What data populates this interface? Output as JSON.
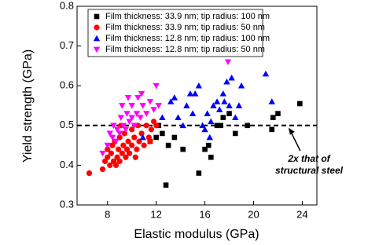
{
  "chart_data": {
    "type": "scatter",
    "x_label": "Elastic modulus (GPa)",
    "y_label": "Yield strength (GPa)",
    "xlim": [
      5.5,
      25.2
    ],
    "ylim": [
      0.3,
      0.8
    ],
    "xticks": [
      8,
      12,
      16,
      20,
      24
    ],
    "yticks": [
      0.3,
      0.4,
      0.5,
      0.6,
      0.7,
      0.8
    ],
    "reference_line": 0.5,
    "annotation": [
      "2x that of",
      "structural steel"
    ],
    "annotation_arrow_x": 22.8,
    "legend": "top-left",
    "series": [
      {
        "name": "Film thickness: 33.9 nm; tip radius: 100 nm",
        "color": "#000000",
        "marker": "square",
        "x": [
          11.5,
          12,
          12.5,
          13,
          12.8,
          13.5,
          14.2,
          15.5,
          16,
          16.3,
          16.5,
          17,
          17.5,
          18,
          18.5,
          19.5,
          21.5,
          21.6,
          22,
          23.8,
          12.2,
          17.3
        ],
        "values": [
          0.46,
          0.47,
          0.48,
          0.45,
          0.35,
          0.47,
          0.44,
          0.38,
          0.44,
          0.45,
          0.42,
          0.5,
          0.52,
          0.53,
          0.48,
          0.5,
          0.49,
          0.52,
          0.53,
          0.555,
          0.5,
          0.5
        ]
      },
      {
        "name": "Film thickness: 33.9 nm; tip radius: 50 nm",
        "color": "#ff0000",
        "marker": "circle",
        "x": [
          6.5,
          7.6,
          7.8,
          8,
          8,
          8.2,
          8.3,
          8.4,
          8.5,
          8.6,
          8.7,
          8.8,
          8.9,
          9,
          9,
          9.2,
          9.3,
          9.4,
          9.5,
          9.6,
          9.7,
          9.8,
          10,
          10,
          10.2,
          10.4,
          10.5,
          10.6,
          10.8,
          11,
          11.2,
          11.4,
          11.6,
          11.8,
          12,
          10.3,
          9.1,
          11.5
        ],
        "values": [
          0.38,
          0.39,
          0.41,
          0.42,
          0.44,
          0.4,
          0.43,
          0.45,
          0.41,
          0.46,
          0.4,
          0.42,
          0.44,
          0.47,
          0.41,
          0.43,
          0.45,
          0.48,
          0.42,
          0.44,
          0.46,
          0.43,
          0.45,
          0.49,
          0.47,
          0.44,
          0.5,
          0.46,
          0.48,
          0.45,
          0.5,
          0.47,
          0.49,
          0.51,
          0.5,
          0.42,
          0.5,
          0.46
        ]
      },
      {
        "name": "Film thickness: 12.8 nm; tip radius: 100 nm",
        "color": "#0000ff",
        "marker": "triangle-up",
        "x": [
          10.9,
          12.5,
          13.2,
          13.5,
          14.5,
          14.8,
          15,
          15.2,
          15.5,
          15.8,
          16,
          16.2,
          16.5,
          16.7,
          17,
          17.2,
          17.5,
          17.6,
          17.8,
          18,
          18.2,
          18.5,
          18.8,
          19,
          21,
          21.5,
          16.4,
          14.2,
          13.8
        ],
        "values": [
          0.47,
          0.52,
          0.56,
          0.57,
          0.55,
          0.58,
          0.53,
          0.58,
          0.6,
          0.5,
          0.49,
          0.53,
          0.51,
          0.55,
          0.56,
          0.54,
          0.58,
          0.56,
          0.61,
          0.55,
          0.62,
          0.52,
          0.55,
          0.6,
          0.63,
          0.56,
          0.47,
          0.5,
          0.52
        ]
      },
      {
        "name": "Film thickness: 12.8 nm; tip radius: 50 nm",
        "color": "#ff00ff",
        "marker": "triangle-down",
        "x": [
          7.6,
          8,
          8.2,
          8.4,
          8.5,
          8.7,
          8.8,
          9,
          9.1,
          9.3,
          9.5,
          9.6,
          9.8,
          10,
          10,
          10.2,
          10.4,
          10.5,
          10.7,
          10.9,
          11.2,
          11.5,
          11.8,
          12,
          12.2,
          10.8,
          17.9,
          9.7,
          9.2
        ],
        "values": [
          0.43,
          0.45,
          0.48,
          0.47,
          0.5,
          0.46,
          0.49,
          0.48,
          0.52,
          0.5,
          0.49,
          0.53,
          0.51,
          0.55,
          0.52,
          0.5,
          0.53,
          0.57,
          0.52,
          0.55,
          0.53,
          0.56,
          0.54,
          0.6,
          0.55,
          0.58,
          0.66,
          0.57,
          0.55
        ]
      }
    ]
  }
}
